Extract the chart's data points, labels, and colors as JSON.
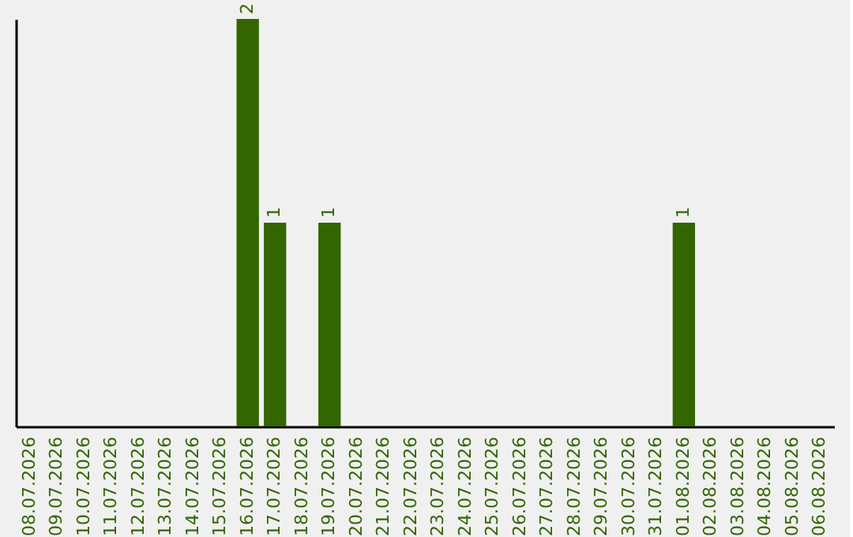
{
  "chart_data": {
    "type": "bar",
    "categories": [
      "08.07.2026",
      "09.07.2026",
      "10.07.2026",
      "11.07.2026",
      "12.07.2026",
      "13.07.2026",
      "14.07.2026",
      "15.07.2026",
      "16.07.2026",
      "17.07.2026",
      "18.07.2026",
      "19.07.2026",
      "20.07.2026",
      "21.07.2026",
      "22.07.2026",
      "23.07.2026",
      "24.07.2026",
      "25.07.2026",
      "26.07.2026",
      "27.07.2026",
      "28.07.2026",
      "29.07.2026",
      "30.07.2026",
      "31.07.2026",
      "01.08.2026",
      "02.08.2026",
      "03.08.2026",
      "04.08.2026",
      "05.08.2026",
      "06.08.2026"
    ],
    "values": [
      0,
      0,
      0,
      0,
      0,
      0,
      0,
      0,
      2,
      1,
      0,
      1,
      0,
      0,
      0,
      0,
      0,
      0,
      0,
      0,
      0,
      0,
      0,
      0,
      1,
      0,
      0,
      0,
      0,
      0
    ],
    "value_labels": [
      null,
      null,
      null,
      null,
      null,
      null,
      null,
      null,
      "2",
      "1",
      null,
      "1",
      null,
      null,
      null,
      null,
      null,
      null,
      null,
      null,
      null,
      null,
      null,
      null,
      "1",
      null,
      null,
      null,
      null,
      null
    ],
    "color": "#336600",
    "tick_labels": "x",
    "grid": false
  }
}
